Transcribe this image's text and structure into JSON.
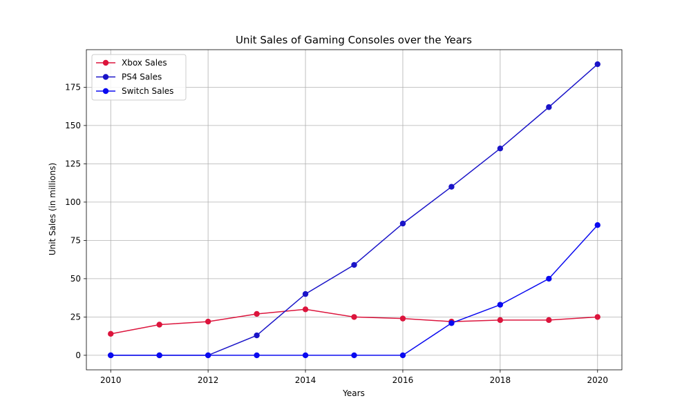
{
  "chart_data": {
    "type": "line",
    "title": "Unit Sales of Gaming Consoles over the Years",
    "xlabel": "Years",
    "ylabel": "Unit Sales (in millions)",
    "x": [
      2010,
      2011,
      2012,
      2013,
      2014,
      2015,
      2016,
      2017,
      2018,
      2019,
      2020
    ],
    "xlim": [
      2009.5,
      2020.5
    ],
    "ylim": [
      -9.5,
      199.5
    ],
    "xticks": [
      2010,
      2012,
      2014,
      2016,
      2018,
      2020
    ],
    "yticks": [
      0,
      25,
      50,
      75,
      100,
      125,
      150,
      175
    ],
    "grid": true,
    "legend_position": "top-left",
    "series": [
      {
        "name": "Xbox Sales",
        "color": "#dc143c",
        "values": [
          14,
          20,
          22,
          27,
          30,
          25,
          24,
          22,
          23,
          23,
          25
        ]
      },
      {
        "name": "PS4 Sales",
        "color": "#1a14c8",
        "values": [
          0,
          0,
          0,
          13,
          40,
          59,
          86,
          110,
          135,
          162,
          190
        ]
      },
      {
        "name": "Switch Sales",
        "color": "#0a0af0",
        "values": [
          0,
          0,
          0,
          0,
          0,
          0,
          0,
          21,
          33,
          50,
          85
        ]
      }
    ]
  }
}
